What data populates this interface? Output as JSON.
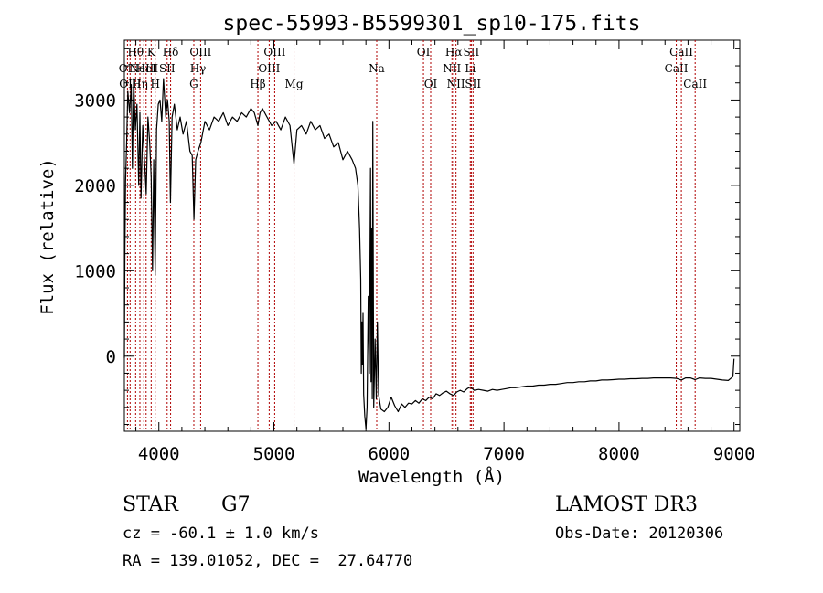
{
  "chart_data": {
    "type": "line",
    "title": "spec-55993-B5599301_sp10-175.fits",
    "xlabel": "Wavelength (Å)",
    "ylabel": "Flux (relative)",
    "xlim": [
      3700,
      9050
    ],
    "ylim": [
      -880,
      3700
    ],
    "xticks": [
      4000,
      5000,
      6000,
      7000,
      8000,
      9000
    ],
    "yticks": [
      0,
      1000,
      2000,
      3000
    ],
    "grid": false,
    "series": [
      {
        "line_color": "#000000",
        "points": [
          [
            3700,
            -20
          ],
          [
            3705,
            1250
          ],
          [
            3710,
            2050
          ],
          [
            3720,
            2500
          ],
          [
            3730,
            3100
          ],
          [
            3745,
            2850
          ],
          [
            3760,
            3180
          ],
          [
            3770,
            2200
          ],
          [
            3780,
            3250
          ],
          [
            3795,
            2650
          ],
          [
            3810,
            2950
          ],
          [
            3825,
            2000
          ],
          [
            3835,
            2850
          ],
          [
            3845,
            1850
          ],
          [
            3860,
            2700
          ],
          [
            3875,
            2300
          ],
          [
            3890,
            1900
          ],
          [
            3905,
            2800
          ],
          [
            3920,
            2500
          ],
          [
            3933,
            2100
          ],
          [
            3945,
            1000
          ],
          [
            3955,
            2300
          ],
          [
            3968,
            950
          ],
          [
            3980,
            2650
          ],
          [
            3995,
            2950
          ],
          [
            4010,
            3000
          ],
          [
            4025,
            2750
          ],
          [
            4040,
            3250
          ],
          [
            4060,
            2800
          ],
          [
            4075,
            3000
          ],
          [
            4090,
            2750
          ],
          [
            4101,
            1800
          ],
          [
            4115,
            2800
          ],
          [
            4135,
            2950
          ],
          [
            4160,
            2650
          ],
          [
            4185,
            2800
          ],
          [
            4210,
            2600
          ],
          [
            4240,
            2750
          ],
          [
            4270,
            2400
          ],
          [
            4290,
            2350
          ],
          [
            4305,
            1600
          ],
          [
            4320,
            2300
          ],
          [
            4340,
            2400
          ],
          [
            4365,
            2500
          ],
          [
            4400,
            2750
          ],
          [
            4440,
            2650
          ],
          [
            4480,
            2800
          ],
          [
            4520,
            2750
          ],
          [
            4560,
            2850
          ],
          [
            4600,
            2700
          ],
          [
            4640,
            2800
          ],
          [
            4680,
            2750
          ],
          [
            4720,
            2850
          ],
          [
            4760,
            2800
          ],
          [
            4800,
            2900
          ],
          [
            4830,
            2850
          ],
          [
            4861,
            2700
          ],
          [
            4880,
            2850
          ],
          [
            4900,
            2900
          ],
          [
            4940,
            2800
          ],
          [
            4980,
            2700
          ],
          [
            5020,
            2750
          ],
          [
            5060,
            2650
          ],
          [
            5100,
            2800
          ],
          [
            5140,
            2700
          ],
          [
            5175,
            2250
          ],
          [
            5200,
            2650
          ],
          [
            5240,
            2700
          ],
          [
            5280,
            2600
          ],
          [
            5320,
            2750
          ],
          [
            5360,
            2650
          ],
          [
            5400,
            2700
          ],
          [
            5440,
            2550
          ],
          [
            5480,
            2600
          ],
          [
            5520,
            2450
          ],
          [
            5560,
            2500
          ],
          [
            5600,
            2300
          ],
          [
            5640,
            2400
          ],
          [
            5680,
            2300
          ],
          [
            5710,
            2200
          ],
          [
            5730,
            2000
          ],
          [
            5745,
            1500
          ],
          [
            5755,
            900
          ],
          [
            5760,
            -200
          ],
          [
            5765,
            400
          ],
          [
            5770,
            -100
          ],
          [
            5775,
            500
          ],
          [
            5780,
            -450
          ],
          [
            5790,
            -700
          ],
          [
            5800,
            -850
          ],
          [
            5810,
            -600
          ],
          [
            5820,
            700
          ],
          [
            5830,
            -200
          ],
          [
            5840,
            2200
          ],
          [
            5845,
            -300
          ],
          [
            5850,
            1500
          ],
          [
            5855,
            -500
          ],
          [
            5860,
            2750
          ],
          [
            5868,
            -600
          ],
          [
            5880,
            200
          ],
          [
            5890,
            -500
          ],
          [
            5900,
            400
          ],
          [
            5910,
            -450
          ],
          [
            5930,
            -620
          ],
          [
            5960,
            -650
          ],
          [
            5990,
            -600
          ],
          [
            6020,
            -480
          ],
          [
            6050,
            -580
          ],
          [
            6080,
            -650
          ],
          [
            6110,
            -560
          ],
          [
            6140,
            -600
          ],
          [
            6170,
            -550
          ],
          [
            6200,
            -560
          ],
          [
            6230,
            -520
          ],
          [
            6260,
            -550
          ],
          [
            6290,
            -500
          ],
          [
            6320,
            -520
          ],
          [
            6350,
            -480
          ],
          [
            6380,
            -500
          ],
          [
            6410,
            -440
          ],
          [
            6440,
            -460
          ],
          [
            6470,
            -430
          ],
          [
            6500,
            -410
          ],
          [
            6530,
            -440
          ],
          [
            6563,
            -460
          ],
          [
            6590,
            -420
          ],
          [
            6620,
            -400
          ],
          [
            6650,
            -420
          ],
          [
            6680,
            -380
          ],
          [
            6710,
            -360
          ],
          [
            6740,
            -400
          ],
          [
            6780,
            -390
          ],
          [
            6820,
            -400
          ],
          [
            6860,
            -410
          ],
          [
            6900,
            -390
          ],
          [
            6940,
            -400
          ],
          [
            6980,
            -390
          ],
          [
            7020,
            -380
          ],
          [
            7060,
            -370
          ],
          [
            7100,
            -370
          ],
          [
            7150,
            -360
          ],
          [
            7200,
            -350
          ],
          [
            7250,
            -350
          ],
          [
            7300,
            -340
          ],
          [
            7350,
            -340
          ],
          [
            7400,
            -330
          ],
          [
            7450,
            -330
          ],
          [
            7500,
            -320
          ],
          [
            7550,
            -310
          ],
          [
            7600,
            -310
          ],
          [
            7650,
            -300
          ],
          [
            7700,
            -300
          ],
          [
            7750,
            -290
          ],
          [
            7800,
            -290
          ],
          [
            7850,
            -280
          ],
          [
            7900,
            -280
          ],
          [
            7950,
            -275
          ],
          [
            8000,
            -270
          ],
          [
            8050,
            -270
          ],
          [
            8100,
            -265
          ],
          [
            8150,
            -265
          ],
          [
            8200,
            -260
          ],
          [
            8250,
            -260
          ],
          [
            8300,
            -255
          ],
          [
            8350,
            -255
          ],
          [
            8400,
            -255
          ],
          [
            8450,
            -255
          ],
          [
            8500,
            -260
          ],
          [
            8542,
            -280
          ],
          [
            8580,
            -255
          ],
          [
            8620,
            -255
          ],
          [
            8662,
            -275
          ],
          [
            8700,
            -255
          ],
          [
            8750,
            -260
          ],
          [
            8800,
            -260
          ],
          [
            8850,
            -270
          ],
          [
            8900,
            -280
          ],
          [
            8950,
            -285
          ],
          [
            8990,
            -240
          ],
          [
            9000,
            -30
          ]
        ]
      }
    ],
    "line_markers": {
      "color": "#b00000",
      "lines": [
        {
          "wavelength": 3727,
          "label": "OII",
          "row": 1
        },
        {
          "wavelength": 3750,
          "label": "OIII",
          "row": 2
        },
        {
          "wavelength": 3798,
          "label": "Hθ",
          "row": 0
        },
        {
          "wavelength": 3835,
          "label": "Hη",
          "row": 2
        },
        {
          "wavelength": 3869,
          "label": "NeIII",
          "row": 1
        },
        {
          "wavelength": 3889,
          "label": "HeI",
          "row": 1
        },
        {
          "wavelength": 3933,
          "label": "K",
          "row": 0
        },
        {
          "wavelength": 3968,
          "label": "H",
          "row": 2
        },
        {
          "wavelength": 4072,
          "label": "SII",
          "row": 1
        },
        {
          "wavelength": 4102,
          "label": "Hδ",
          "row": 0
        },
        {
          "wavelength": 4304,
          "label": "G",
          "row": 2
        },
        {
          "wavelength": 4340,
          "label": "Hγ",
          "row": 1
        },
        {
          "wavelength": 4363,
          "label": "OIII",
          "row": 0
        },
        {
          "wavelength": 4861,
          "label": "Hβ",
          "row": 2
        },
        {
          "wavelength": 4959,
          "label": "OIII",
          "row": 1
        },
        {
          "wavelength": 5007,
          "label": "OIII",
          "row": 0
        },
        {
          "wavelength": 5175,
          "label": "Mg",
          "row": 2
        },
        {
          "wavelength": 5894,
          "label": "Na",
          "row": 1
        },
        {
          "wavelength": 6300,
          "label": "OI",
          "row": 0
        },
        {
          "wavelength": 6363,
          "label": "OI",
          "row": 2
        },
        {
          "wavelength": 6548,
          "label": "NII",
          "row": 1
        },
        {
          "wavelength": 6563,
          "label": "Hα",
          "row": 0
        },
        {
          "wavelength": 6583,
          "label": "NII",
          "row": 2
        },
        {
          "wavelength": 6707,
          "label": "Li",
          "row": 1
        },
        {
          "wavelength": 6716,
          "label": "SII",
          "row": 0
        },
        {
          "wavelength": 6731,
          "label": "SII",
          "row": 2
        },
        {
          "wavelength": 8498,
          "label": "CaII",
          "row": 1
        },
        {
          "wavelength": 8542,
          "label": "CaII",
          "row": 0
        },
        {
          "wavelength": 8662,
          "label": "CaII",
          "row": 2
        }
      ]
    }
  },
  "footer": {
    "class_label": "STAR",
    "subclass": "G7",
    "survey": "LAMOST DR3",
    "cz": "cz = -60.1 ± 1.0 km/s",
    "obs_date": "Obs-Date: 20120306",
    "coords": "RA = 139.01052, DEC =  27.64770"
  }
}
